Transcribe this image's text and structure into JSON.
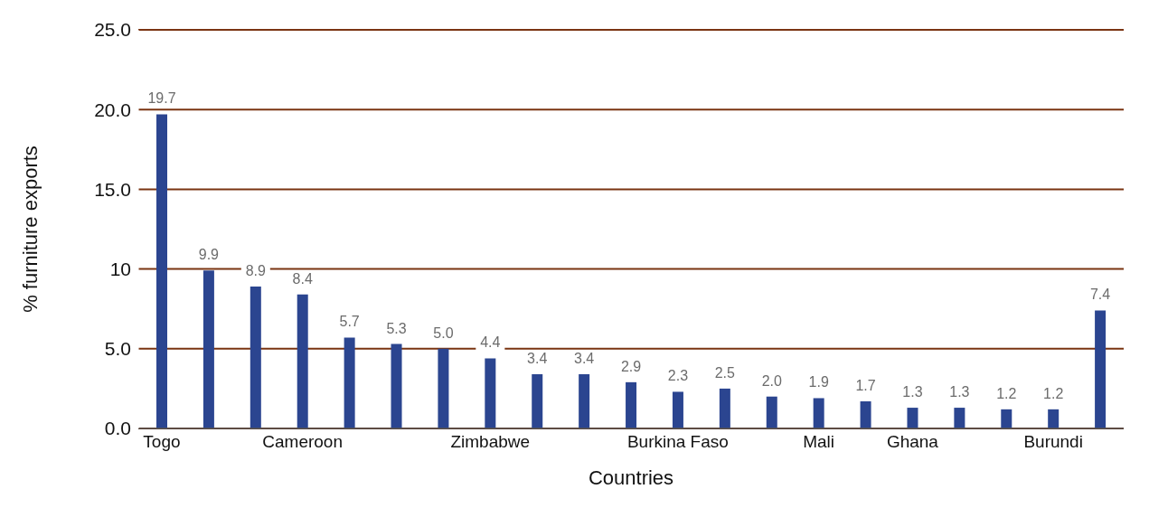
{
  "chart_data": {
    "type": "bar",
    "xlabel": "Countries",
    "ylabel": "% furniture exports",
    "categories": [
      "Togo",
      null,
      null,
      "Cameroon",
      null,
      null,
      null,
      "Zimbabwe",
      null,
      null,
      null,
      "Burkina Faso",
      null,
      null,
      "Mali",
      null,
      "Ghana",
      null,
      null,
      "Burundi",
      null
    ],
    "values": [
      19.7,
      9.9,
      8.9,
      8.4,
      5.7,
      5.3,
      5.0,
      4.4,
      3.4,
      3.4,
      2.9,
      2.3,
      2.5,
      2.0,
      1.9,
      1.7,
      1.3,
      1.3,
      1.2,
      1.2,
      7.4
    ],
    "value_labels": [
      "19.7",
      "9.9",
      "8.9",
      "8.4",
      "5.7",
      "5.3",
      "5.0",
      "4.4",
      "3.4",
      "3.4",
      "2.9",
      "2.3",
      "2.5",
      "2.0",
      "1.9",
      "1.7",
      "1.3",
      "1.3",
      "1.2",
      "1.2",
      "7.4"
    ],
    "color": "#2b4590",
    "ylim": [
      0,
      25
    ],
    "yticks": [
      {
        "value": 0,
        "label": "0.0"
      },
      {
        "value": 5,
        "label": "5.0"
      },
      {
        "value": 10,
        "label": "10"
      },
      {
        "value": 15,
        "label": "15.0"
      },
      {
        "value": 20,
        "label": "20.0"
      },
      {
        "value": 25,
        "label": "25.0"
      }
    ],
    "grid": "y",
    "legend": false
  }
}
